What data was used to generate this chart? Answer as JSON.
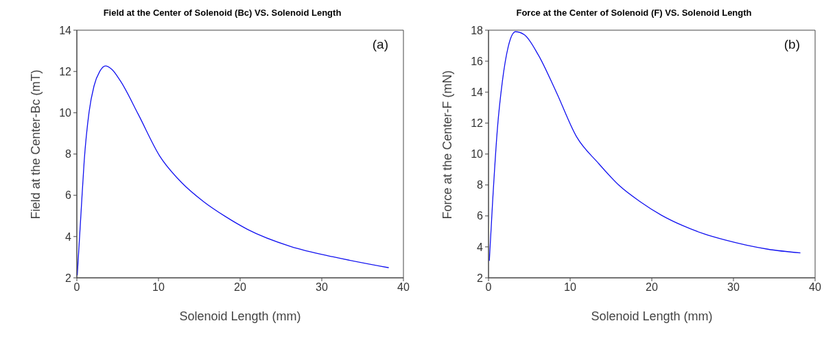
{
  "chart_data": [
    {
      "type": "line",
      "title": "Field at the Center of Solenoid (Bc) VS. Solenoid Length",
      "xlabel": "Solenoid Length (mm)",
      "ylabel": "Field at the Center-Bc (mT)",
      "annotations": [
        "(a)"
      ],
      "x": [
        0.05,
        0.5,
        0.9,
        1.5,
        2.1,
        2.8,
        3.5,
        4.3,
        5.4,
        7.5,
        10.2,
        12.8,
        15.5,
        18.2,
        20.9,
        26.2,
        31.6,
        38.2
      ],
      "series": [
        {
          "color": "#1010f0",
          "values": [
            2.12,
            5.07,
            7.66,
            10.04,
            11.29,
            12.0,
            12.27,
            12.1,
            11.5,
            9.94,
            7.87,
            6.63,
            5.7,
            4.97,
            4.35,
            3.52,
            3.0,
            2.49
          ]
        }
      ],
      "xlim": [
        0,
        40
      ],
      "xticks": [
        0,
        10,
        20,
        30,
        40
      ],
      "ylim": [
        2,
        14
      ],
      "yticks": [
        2,
        4,
        6,
        8,
        10,
        12,
        14
      ],
      "grid": false,
      "legend": false,
      "marker": "none",
      "line_style": "solid"
    },
    {
      "type": "line",
      "title": "Force at the Center of Solenoid (F) VS. Solenoid Length",
      "xlabel": "Solenoid Length (mm)",
      "ylabel": "Force at the Center-F (mN)",
      "annotations": [
        "(b)"
      ],
      "x": [
        0.1,
        0.5,
        1.1,
        1.7,
        2.4,
        3.3,
        4.4,
        6.1,
        8.3,
        10.8,
        13.4,
        16.0,
        18.6,
        21.2,
        23.8,
        26.4,
        29.0,
        31.6,
        34.2,
        38.2
      ],
      "series": [
        {
          "color": "#1010f0",
          "values": [
            3.1,
            6.9,
            11.7,
            14.7,
            16.9,
            17.9,
            17.7,
            16.4,
            14.0,
            11.1,
            9.44,
            7.97,
            6.91,
            6.04,
            5.37,
            4.84,
            4.44,
            4.11,
            3.85,
            3.61
          ]
        }
      ],
      "xlim": [
        0,
        40
      ],
      "xticks": [
        0,
        10,
        20,
        30,
        40
      ],
      "ylim": [
        2,
        18
      ],
      "yticks": [
        2,
        4,
        6,
        8,
        10,
        12,
        14,
        16,
        18
      ],
      "grid": false,
      "legend": false,
      "marker": "none",
      "line_style": "solid"
    }
  ]
}
